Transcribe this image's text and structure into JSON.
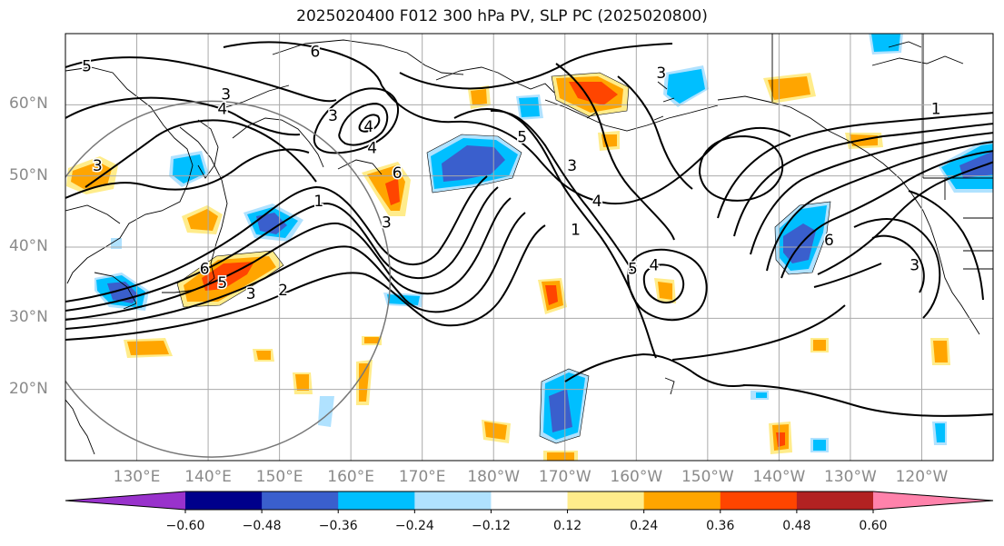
{
  "title": "2025020400 F012 300 hPa PV, SLP PC (2025020800)",
  "map": {
    "projection": "equirectangular",
    "lon_range": [
      120,
      250
    ],
    "lat_range": [
      10,
      70
    ],
    "lat_ticks": [
      {
        "value": 20,
        "label": "20°N"
      },
      {
        "value": 30,
        "label": "30°N"
      },
      {
        "value": 40,
        "label": "40°N"
      },
      {
        "value": 50,
        "label": "50°N"
      },
      {
        "value": 60,
        "label": "60°N"
      }
    ],
    "lon_ticks": [
      {
        "value": 130,
        "label": "130°E"
      },
      {
        "value": 140,
        "label": "140°E"
      },
      {
        "value": 150,
        "label": "150°E"
      },
      {
        "value": 160,
        "label": "160°E"
      },
      {
        "value": 170,
        "label": "170°E"
      },
      {
        "value": 180,
        "label": "180°W"
      },
      {
        "value": 190,
        "label": "170°W"
      },
      {
        "value": 200,
        "label": "160°W"
      },
      {
        "value": 210,
        "label": "150°W"
      },
      {
        "value": 220,
        "label": "140°W"
      },
      {
        "value": 230,
        "label": "130°W"
      },
      {
        "value": 240,
        "label": "120°W"
      }
    ],
    "grid": true,
    "contour_labels": [
      {
        "text": "5",
        "lon": 123,
        "lat": 65.5
      },
      {
        "text": "6",
        "lon": 155,
        "lat": 67.5
      },
      {
        "text": "3",
        "lon": 142.5,
        "lat": 61.5
      },
      {
        "text": "4",
        "lon": 142,
        "lat": 59.5
      },
      {
        "text": "3",
        "lon": 157.5,
        "lat": 58.5
      },
      {
        "text": "4",
        "lon": 162.5,
        "lat": 57
      },
      {
        "text": "4",
        "lon": 163,
        "lat": 54
      },
      {
        "text": "6",
        "lon": 166.5,
        "lat": 50.5
      },
      {
        "text": "3",
        "lon": 165,
        "lat": 43.5
      },
      {
        "text": "1",
        "lon": 155.5,
        "lat": 46.5
      },
      {
        "text": "6",
        "lon": 139.5,
        "lat": 37
      },
      {
        "text": "5",
        "lon": 142,
        "lat": 35
      },
      {
        "text": "3",
        "lon": 146,
        "lat": 33.5
      },
      {
        "text": "2",
        "lon": 150.5,
        "lat": 34
      },
      {
        "text": "3",
        "lon": 124.5,
        "lat": 51.5
      },
      {
        "text": "5",
        "lon": 184,
        "lat": 55.5
      },
      {
        "text": "3",
        "lon": 191,
        "lat": 51.5
      },
      {
        "text": "4",
        "lon": 194.5,
        "lat": 46.5
      },
      {
        "text": "1",
        "lon": 191.5,
        "lat": 42.5
      },
      {
        "text": "5",
        "lon": 199.5,
        "lat": 37
      },
      {
        "text": "4",
        "lon": 202.5,
        "lat": 37.5
      },
      {
        "text": "3",
        "lon": 203.5,
        "lat": 64.5
      },
      {
        "text": "6",
        "lon": 227,
        "lat": 41
      },
      {
        "text": "1",
        "lon": 242,
        "lat": 59.5
      },
      {
        "text": "3",
        "lon": 239,
        "lat": 37.5
      }
    ],
    "circle": {
      "center_lon": 140.5,
      "center_lat": 35.5,
      "radius_deg": 25
    }
  },
  "colorbar": {
    "levels": [
      -0.6,
      -0.48,
      -0.36,
      -0.24,
      -0.12,
      0.12,
      0.24,
      0.36,
      0.48,
      0.6
    ],
    "tick_labels": [
      "−0.60",
      "−0.48",
      "−0.36",
      "−0.24",
      "−0.12",
      "0.12",
      "0.24",
      "0.36",
      "0.48",
      "0.60"
    ],
    "colors": [
      "#9932cc",
      "#00008b",
      "#3a5fcd",
      "#00bfff",
      "#b0e2ff",
      "#ffffff",
      "#ffec8b",
      "#ffa500",
      "#ff4500",
      "#b22222",
      "#ff82ab"
    ]
  }
}
